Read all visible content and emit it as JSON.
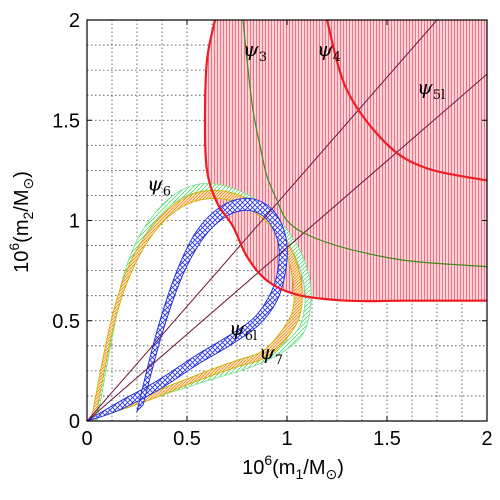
{
  "chart_data": {
    "type": "area",
    "title": "",
    "xlabel": {
      "prefix": "10",
      "exp": "6",
      "body": "(m",
      "sub": "1",
      "mid": "/M",
      "sun": "⊙",
      "end": ")"
    },
    "ylabel": {
      "prefix": "10",
      "exp": "6",
      "body": "(m",
      "sub": "2",
      "mid": "/M",
      "sun": "⊙",
      "end": ")"
    },
    "xlim": [
      0,
      2
    ],
    "ylim": [
      0,
      2
    ],
    "xticks": [
      0,
      0.5,
      1,
      1.5,
      2
    ],
    "yticks": [
      0,
      0.5,
      1,
      1.5,
      2
    ],
    "xtick_labels": [
      "0",
      "0.5",
      "1",
      "1.5",
      "2"
    ],
    "ytick_labels": [
      "0",
      "0.5",
      "1",
      "1.5",
      "2"
    ],
    "minor_grid_step": 0.125,
    "grid": true,
    "colors": {
      "red_region": "#ee1c24",
      "red_fill": "#f7a8b3",
      "blue_region": "#1c28e0",
      "green_line": "#3b8a1c",
      "orange_band": "#f08a1c",
      "yellow_band": "#c8b400",
      "mint_band": "#6fe08a",
      "diagonal_lines": "#6a1440"
    },
    "region_labels": [
      {
        "id": "psi3",
        "symbol": "ψ",
        "sub": "3",
        "x": 0.78,
        "y": 1.82
      },
      {
        "id": "psi4",
        "symbol": "ψ",
        "sub": "4",
        "x": 1.15,
        "y": 1.82
      },
      {
        "id": "psi5l",
        "symbol": "ψ",
        "sub": "5l",
        "x": 1.65,
        "y": 1.63
      },
      {
        "id": "psi6",
        "symbol": "ψ",
        "sub": "6",
        "x": 0.3,
        "y": 1.15
      },
      {
        "id": "psi6l",
        "symbol": "ψ",
        "sub": "6l",
        "x": 0.71,
        "y": 0.43
      },
      {
        "id": "psi7",
        "symbol": "ψ",
        "sub": "7",
        "x": 0.86,
        "y": 0.31
      }
    ],
    "series": [
      {
        "name": "ψ4",
        "kind": "region-boundary",
        "upper_branch": [
          [
            1.2,
            2.0
          ],
          [
            1.3,
            1.65
          ],
          [
            1.5,
            1.38
          ],
          [
            1.7,
            1.26
          ],
          [
            2.0,
            1.2
          ]
        ],
        "left_branch": [
          [
            0.64,
            2.0
          ],
          [
            0.6,
            1.8
          ],
          [
            0.59,
            1.5
          ],
          [
            0.6,
            1.25
          ],
          [
            0.65,
            1.09
          ],
          [
            0.73,
            0.97
          ]
        ],
        "lower_branch": [
          [
            0.73,
            0.97
          ],
          [
            0.8,
            0.82
          ],
          [
            0.9,
            0.7
          ],
          [
            1.05,
            0.63
          ],
          [
            1.3,
            0.6
          ],
          [
            1.6,
            0.6
          ],
          [
            2.0,
            0.6
          ]
        ]
      },
      {
        "name": "ψ3",
        "kind": "line",
        "points": [
          [
            0.78,
            2.0
          ],
          [
            0.8,
            1.8
          ],
          [
            0.83,
            1.55
          ],
          [
            0.87,
            1.35
          ],
          [
            0.9,
            1.22
          ],
          [
            0.95,
            1.1
          ],
          [
            1.0,
            1.0
          ],
          [
            1.1,
            0.93
          ],
          [
            1.3,
            0.86
          ],
          [
            1.6,
            0.8
          ],
          [
            2.0,
            0.77
          ]
        ]
      },
      {
        "name": "ψ5l",
        "kind": "lines",
        "lines": [
          [
            [
              0.0,
              0.0
            ],
            [
              1.75,
              2.0
            ]
          ],
          [
            [
              0.0,
              0.0
            ],
            [
              2.0,
              1.73
            ]
          ]
        ]
      },
      {
        "name": "ψ6",
        "kind": "loop",
        "outer": [
          [
            0.03,
            0.0
          ],
          [
            0.15,
            0.6
          ],
          [
            0.25,
            0.9
          ],
          [
            0.4,
            1.1
          ],
          [
            0.55,
            1.18
          ],
          [
            0.7,
            1.17
          ],
          [
            0.85,
            1.1
          ],
          [
            0.98,
            0.98
          ],
          [
            1.08,
            0.82
          ],
          [
            1.12,
            0.65
          ],
          [
            1.1,
            0.48
          ],
          [
            1.03,
            0.38
          ],
          [
            0.85,
            0.28
          ],
          [
            0.6,
            0.2
          ],
          [
            0.35,
            0.12
          ],
          [
            0.1,
            0.03
          ],
          [
            0.0,
            0.0
          ]
        ],
        "inner": [
          [
            0.05,
            0.0
          ],
          [
            0.16,
            0.58
          ],
          [
            0.26,
            0.87
          ],
          [
            0.4,
            1.06
          ],
          [
            0.55,
            1.14
          ],
          [
            0.7,
            1.13
          ],
          [
            0.84,
            1.06
          ],
          [
            0.96,
            0.95
          ],
          [
            1.05,
            0.8
          ],
          [
            1.09,
            0.64
          ],
          [
            1.07,
            0.49
          ],
          [
            1.0,
            0.4
          ],
          [
            0.84,
            0.31
          ],
          [
            0.6,
            0.23
          ],
          [
            0.35,
            0.14
          ],
          [
            0.1,
            0.05
          ],
          [
            0.0,
            0.0
          ]
        ]
      },
      {
        "name": "ψ6l",
        "kind": "loop",
        "outer": [
          [
            0.25,
            0.05
          ],
          [
            0.35,
            0.45
          ],
          [
            0.45,
            0.75
          ],
          [
            0.55,
            0.95
          ],
          [
            0.67,
            1.07
          ],
          [
            0.78,
            1.11
          ],
          [
            0.88,
            1.09
          ],
          [
            0.96,
            1.01
          ],
          [
            1.0,
            0.88
          ],
          [
            0.99,
            0.73
          ],
          [
            0.95,
            0.6
          ],
          [
            0.86,
            0.48
          ],
          [
            0.72,
            0.38
          ],
          [
            0.55,
            0.28
          ],
          [
            0.35,
            0.15
          ],
          [
            0.15,
            0.05
          ],
          [
            0.0,
            0.0
          ]
        ],
        "inner": [
          [
            0.28,
            0.08
          ],
          [
            0.38,
            0.45
          ],
          [
            0.48,
            0.73
          ],
          [
            0.58,
            0.91
          ],
          [
            0.68,
            1.01
          ],
          [
            0.78,
            1.05
          ],
          [
            0.87,
            1.03
          ],
          [
            0.93,
            0.96
          ],
          [
            0.96,
            0.86
          ],
          [
            0.95,
            0.73
          ],
          [
            0.91,
            0.62
          ],
          [
            0.83,
            0.51
          ],
          [
            0.7,
            0.42
          ],
          [
            0.55,
            0.33
          ],
          [
            0.35,
            0.2
          ],
          [
            0.15,
            0.09
          ],
          [
            0.0,
            0.0
          ]
        ]
      },
      {
        "name": "ψ7",
        "kind": "loop",
        "outer": [
          [
            0.02,
            0.0
          ],
          [
            0.12,
            0.5
          ],
          [
            0.22,
            0.8
          ],
          [
            0.35,
            1.0
          ],
          [
            0.5,
            1.12
          ],
          [
            0.65,
            1.15
          ],
          [
            0.8,
            1.11
          ],
          [
            0.93,
            1.01
          ],
          [
            1.02,
            0.86
          ],
          [
            1.07,
            0.7
          ],
          [
            1.07,
            0.55
          ],
          [
            1.02,
            0.44
          ],
          [
            0.9,
            0.32
          ],
          [
            0.75,
            0.27
          ],
          [
            0.55,
            0.2
          ],
          [
            0.3,
            0.1
          ],
          [
            0.0,
            0.0
          ]
        ],
        "inner": [
          [
            0.04,
            0.0
          ],
          [
            0.14,
            0.5
          ],
          [
            0.24,
            0.78
          ],
          [
            0.36,
            0.97
          ],
          [
            0.5,
            1.08
          ],
          [
            0.65,
            1.11
          ],
          [
            0.79,
            1.07
          ],
          [
            0.91,
            0.98
          ],
          [
            0.99,
            0.85
          ],
          [
            1.03,
            0.7
          ],
          [
            1.03,
            0.56
          ],
          [
            0.98,
            0.46
          ],
          [
            0.88,
            0.35
          ],
          [
            0.74,
            0.3
          ],
          [
            0.55,
            0.23
          ],
          [
            0.3,
            0.13
          ],
          [
            0.0,
            0.0
          ]
        ]
      }
    ]
  }
}
